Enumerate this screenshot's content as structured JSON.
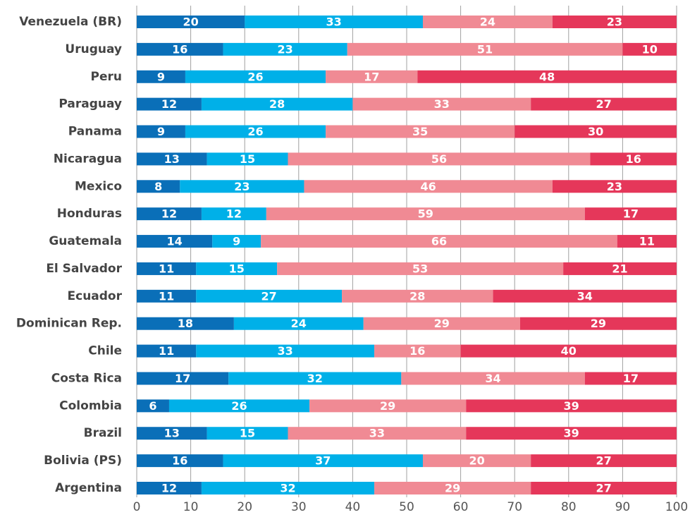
{
  "chart_data": {
    "type": "stacked-bar-horizontal",
    "categories": [
      "Venezuela (BR)",
      "Uruguay",
      "Peru",
      "Paraguay",
      "Panama",
      "Nicaragua",
      "Mexico",
      "Honduras",
      "Guatemala",
      "El Salvador",
      "Ecuador",
      "Dominican Rep.",
      "Chile",
      "Costa Rica",
      "Colombia",
      "Brazil",
      "Bolivia (PS)",
      "Argentina"
    ],
    "series": [
      {
        "color": "#0a6fb8",
        "values": [
          20,
          16,
          9,
          12,
          9,
          13,
          8,
          12,
          14,
          11,
          11,
          18,
          11,
          17,
          6,
          13,
          16,
          12
        ]
      },
      {
        "color": "#00b0e8",
        "values": [
          33,
          23,
          26,
          28,
          26,
          15,
          23,
          12,
          9,
          15,
          27,
          24,
          33,
          32,
          26,
          15,
          37,
          32
        ]
      },
      {
        "color": "#f08a94",
        "values": [
          24,
          51,
          17,
          33,
          35,
          56,
          46,
          59,
          66,
          53,
          28,
          29,
          16,
          34,
          29,
          33,
          20,
          29
        ]
      },
      {
        "color": "#e5375a",
        "values": [
          23,
          10,
          48,
          27,
          30,
          16,
          23,
          17,
          11,
          21,
          34,
          29,
          40,
          17,
          39,
          39,
          27,
          27
        ]
      }
    ],
    "xlim": [
      0,
      100
    ],
    "xticks": [
      0,
      10,
      20,
      30,
      40,
      50,
      60,
      70,
      80,
      90,
      100
    ],
    "grid": true
  }
}
